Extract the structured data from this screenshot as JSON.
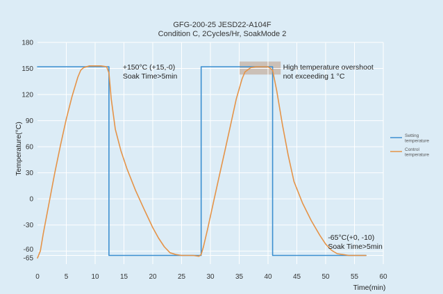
{
  "chart_data": {
    "type": "line",
    "title": "GFG-200-25 JESD22-A104F",
    "subtitle": "Condition C, 2Cycles/Hr, SoakMode 2",
    "xlabel": "Time(min)",
    "ylabel": "Temperature(°C)",
    "xlim": [
      0,
      60
    ],
    "ylim": [
      -75,
      180
    ],
    "x_ticks": [
      0,
      5,
      10,
      15,
      20,
      25,
      30,
      35,
      40,
      45,
      50,
      55,
      60
    ],
    "y_ticks": [
      -65,
      -60,
      -30,
      0,
      30,
      60,
      90,
      120,
      150,
      180
    ],
    "grid": true,
    "legend_position": "right",
    "series": [
      {
        "name": "Setting temperature",
        "color": "#3c8fd0",
        "x": [
          0,
          12.4,
          12.4,
          28.4,
          28.4,
          40.8,
          40.8,
          57
        ],
        "y": [
          152,
          152,
          -65,
          -65,
          152,
          152,
          -65,
          -65
        ]
      },
      {
        "name": "Control temperature",
        "color": "#e59347",
        "x": [
          0,
          0.5,
          1,
          2,
          3,
          4,
          5,
          6,
          7,
          7.5,
          8,
          9,
          10,
          11,
          12,
          12.4,
          12.8,
          13.5,
          14.5,
          15.5,
          17,
          18.5,
          20,
          21,
          22,
          23,
          24,
          25,
          26,
          27,
          28,
          28.4,
          28.8,
          29.5,
          30.5,
          31.5,
          32.5,
          33.5,
          34.5,
          35.5,
          36,
          37,
          38,
          39,
          40,
          40.8,
          41.5,
          42.5,
          43.5,
          44.5,
          46,
          47.5,
          49,
          50,
          51,
          52,
          53,
          54,
          55,
          56,
          57
        ],
        "y": [
          -68,
          -60,
          -40,
          -5,
          30,
          62,
          92,
          118,
          140,
          148,
          151,
          153,
          153,
          153,
          152,
          145,
          115,
          80,
          55,
          35,
          10,
          -12,
          -33,
          -45,
          -55,
          -62,
          -64,
          -65,
          -65,
          -65,
          -66,
          -64,
          -55,
          -35,
          -5,
          25,
          55,
          85,
          115,
          138,
          146,
          151,
          152,
          152,
          152,
          148,
          125,
          85,
          50,
          20,
          -5,
          -25,
          -42,
          -52,
          -59,
          -63,
          -64,
          -65,
          -65,
          -65,
          -65
        ]
      }
    ],
    "annotations": [
      {
        "id": "high-soak",
        "lines": [
          "+150°C (+15,-0)",
          "Soak Time>5min"
        ]
      },
      {
        "id": "overshoot",
        "lines": [
          "High temperature overshoot",
          "not exceeding 1 °C"
        ]
      },
      {
        "id": "low-soak",
        "lines": [
          "-65°C(+0, -10)",
          "Soak Time>5min"
        ]
      }
    ],
    "highlight": {
      "x": [
        35,
        42.2
      ],
      "y": [
        143,
        158
      ],
      "color": "#c8b8ac"
    }
  }
}
